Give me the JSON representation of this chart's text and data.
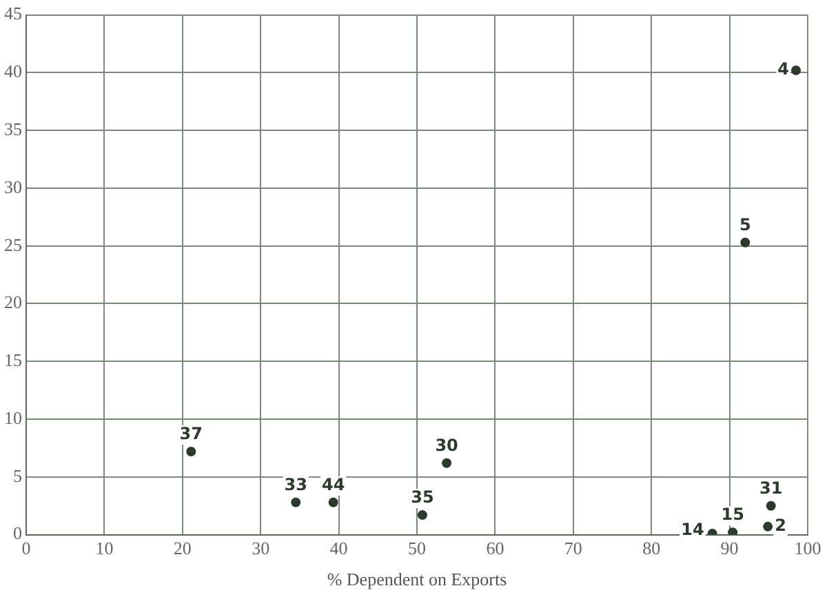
{
  "chart_data": {
    "type": "scatter",
    "xlabel": "% Dependent on Exports",
    "x": [
      98.5,
      92,
      21.1,
      34.5,
      39.3,
      50.7,
      53.8,
      95.3,
      94.9,
      90.4,
      87.8
    ],
    "values": [
      40.2,
      25.3,
      7.2,
      2.8,
      2.8,
      1.7,
      6.2,
      2.5,
      0.7,
      0.2,
      0.1
    ],
    "annotations": [
      {
        "text": "4",
        "x": 98.5,
        "y": 40.2
      },
      {
        "text": "5",
        "x": 92,
        "y": 25.3
      },
      {
        "text": "37",
        "x": 21.1,
        "y": 7.2
      },
      {
        "text": "33",
        "x": 34.5,
        "y": 2.8
      },
      {
        "text": "44",
        "x": 39.3,
        "y": 2.8
      },
      {
        "text": "35",
        "x": 50.7,
        "y": 1.7
      },
      {
        "text": "30",
        "x": 53.8,
        "y": 6.2
      },
      {
        "text": "31",
        "x": 95.3,
        "y": 2.5
      },
      {
        "text": "2",
        "x": 94.9,
        "y": 0.7
      },
      {
        "text": "15",
        "x": 90.4,
        "y": 0.2
      },
      {
        "text": "14",
        "x": 87.8,
        "y": 0.1
      }
    ],
    "color": "#2b3a2b",
    "marker": "circle",
    "grid": true,
    "legend": false,
    "xlim": [
      0,
      100
    ],
    "xticks": [
      0,
      10,
      20,
      30,
      40,
      50,
      60,
      70,
      80,
      90,
      100
    ],
    "ylim": [
      0,
      45
    ],
    "yticks": [
      0,
      5,
      10,
      15,
      20,
      25,
      30,
      35,
      40,
      45
    ]
  }
}
